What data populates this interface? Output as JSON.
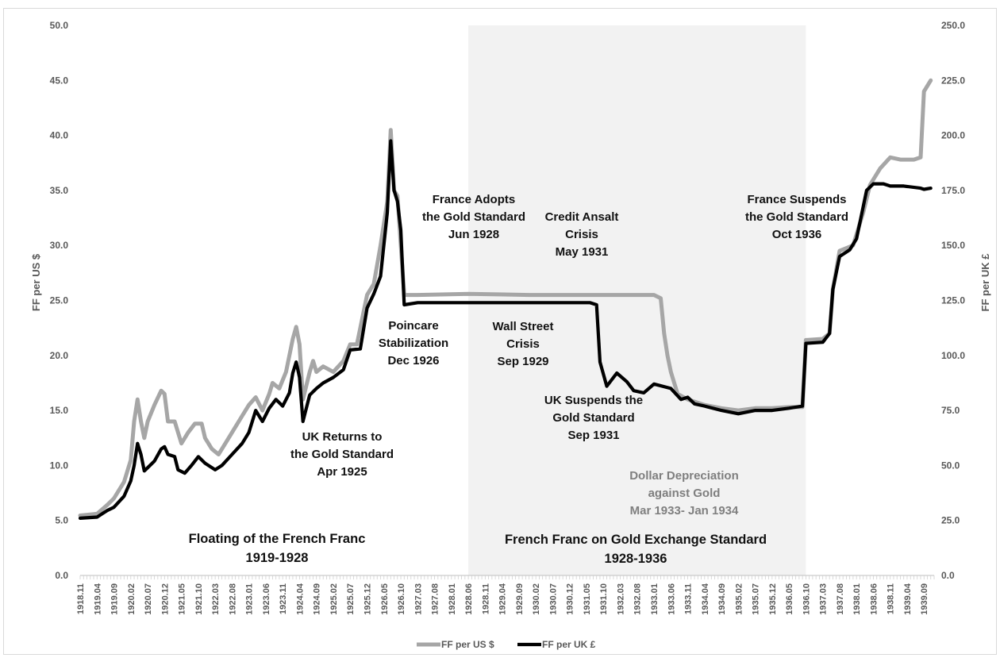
{
  "chart_data": {
    "type": "line",
    "title": "",
    "xlabel": "",
    "ylabel": "FF per US $",
    "y2label": "FF per UK £",
    "ylim": [
      0,
      50
    ],
    "y2lim": [
      0,
      250
    ],
    "yticks": [
      "0.0",
      "5.0",
      "10.0",
      "15.0",
      "20.0",
      "25.0",
      "30.0",
      "35.0",
      "40.0",
      "45.0",
      "50.0"
    ],
    "y2ticks": [
      "0.0",
      "25.0",
      "50.0",
      "75.0",
      "100.0",
      "125.0",
      "150.0",
      "175.0",
      "200.0",
      "225.0",
      "250.0"
    ],
    "x_start": "1918.11",
    "x_end": "1939.12",
    "x_ticks": [
      "1918.11",
      "1919.04",
      "1919.09",
      "1920.02",
      "1920.07",
      "1920.12",
      "1921.05",
      "1921.10",
      "1922.03",
      "1922.08",
      "1923.01",
      "1923.06",
      "1923.11",
      "1924.04",
      "1924.09",
      "1925.02",
      "1925.07",
      "1925.12",
      "1926.05",
      "1926.10",
      "1927.03",
      "1927.08",
      "1928.01",
      "1928.06",
      "1928.11",
      "1929.04",
      "1929.09",
      "1930.02",
      "1930.07",
      "1930.12",
      "1931.05",
      "1931.10",
      "1932.03",
      "1932.08",
      "1933.01",
      "1933.06",
      "1933.11",
      "1934.04",
      "1934.09",
      "1935.02",
      "1935.07",
      "1935.12",
      "1936.05",
      "1936.10",
      "1937.03",
      "1937.08",
      "1938.01",
      "1938.06",
      "1938.11",
      "1939.04",
      "1939.09"
    ],
    "grid": false,
    "legend_position": "bottom",
    "shaded_period": {
      "from": "1928.06",
      "to": "1936.10",
      "color": "#f2f2f2"
    },
    "series": [
      {
        "name": "FF per US $",
        "axis": "left",
        "color": "#a6a6a6",
        "points": [
          [
            "1918.11",
            5.45
          ],
          [
            "1919.04",
            5.6
          ],
          [
            "1919.07",
            6.4
          ],
          [
            "1919.09",
            7.0
          ],
          [
            "1919.12",
            8.5
          ],
          [
            "1920.02",
            10.5
          ],
          [
            "1920.03",
            14.0
          ],
          [
            "1920.04",
            16.0
          ],
          [
            "1920.05",
            14.0
          ],
          [
            "1920.06",
            12.5
          ],
          [
            "1920.07",
            14.0
          ],
          [
            "1920.09",
            15.5
          ],
          [
            "1920.11",
            16.8
          ],
          [
            "1920.12",
            16.5
          ],
          [
            "1921.01",
            14.0
          ],
          [
            "1921.03",
            14.0
          ],
          [
            "1921.05",
            12.0
          ],
          [
            "1921.07",
            13.0
          ],
          [
            "1921.09",
            13.8
          ],
          [
            "1921.11",
            13.8
          ],
          [
            "1921.12",
            12.5
          ],
          [
            "1922.02",
            11.5
          ],
          [
            "1922.04",
            11.0
          ],
          [
            "1922.06",
            12.0
          ],
          [
            "1922.08",
            13.0
          ],
          [
            "1922.11",
            14.5
          ],
          [
            "1923.01",
            15.5
          ],
          [
            "1923.03",
            16.2
          ],
          [
            "1923.05",
            15.0
          ],
          [
            "1923.07",
            16.5
          ],
          [
            "1923.08",
            17.5
          ],
          [
            "1923.10",
            17.0
          ],
          [
            "1923.12",
            18.5
          ],
          [
            "1924.02",
            21.5
          ],
          [
            "1924.03",
            22.6
          ],
          [
            "1924.04",
            21.0
          ],
          [
            "1924.05",
            16.0
          ],
          [
            "1924.07",
            18.5
          ],
          [
            "1924.08",
            19.5
          ],
          [
            "1924.09",
            18.5
          ],
          [
            "1924.11",
            19.0
          ],
          [
            "1925.02",
            18.5
          ],
          [
            "1925.05",
            19.5
          ],
          [
            "1925.07",
            21.0
          ],
          [
            "1925.09",
            21.0
          ],
          [
            "1925.12",
            25.5
          ],
          [
            "1926.02",
            26.5
          ],
          [
            "1926.04",
            30.0
          ],
          [
            "1926.06",
            34.0
          ],
          [
            "1926.07",
            40.5
          ],
          [
            "1926.08",
            35.0
          ],
          [
            "1926.09",
            34.5
          ],
          [
            "1926.11",
            25.5
          ],
          [
            "1927.03",
            25.5
          ],
          [
            "1928.06",
            25.6
          ],
          [
            "1929.12",
            25.5
          ],
          [
            "1931.05",
            25.5
          ],
          [
            "1933.01",
            25.5
          ],
          [
            "1933.03",
            25.2
          ],
          [
            "1933.04",
            22.0
          ],
          [
            "1933.05",
            20.0
          ],
          [
            "1933.06",
            18.5
          ],
          [
            "1933.08",
            16.5
          ],
          [
            "1933.11",
            16.0
          ],
          [
            "1934.01",
            15.8
          ],
          [
            "1934.04",
            15.5
          ],
          [
            "1934.09",
            15.2
          ],
          [
            "1935.02",
            15.0
          ],
          [
            "1935.07",
            15.2
          ],
          [
            "1935.12",
            15.2
          ],
          [
            "1936.05",
            15.3
          ],
          [
            "1936.09",
            15.3
          ],
          [
            "1936.10",
            21.4
          ],
          [
            "1937.03",
            21.5
          ],
          [
            "1937.05",
            22.0
          ],
          [
            "1937.06",
            26.0
          ],
          [
            "1937.08",
            29.5
          ],
          [
            "1937.12",
            30.0
          ],
          [
            "1938.03",
            33.0
          ],
          [
            "1938.05",
            35.5
          ],
          [
            "1938.08",
            37.0
          ],
          [
            "1938.11",
            38.0
          ],
          [
            "1939.02",
            37.8
          ],
          [
            "1939.06",
            37.8
          ],
          [
            "1939.08",
            38.0
          ],
          [
            "1939.09",
            44.0
          ],
          [
            "1939.11",
            45.0
          ]
        ]
      },
      {
        "name": "FF per UK £",
        "axis": "right",
        "color": "#000000",
        "points": [
          [
            "1918.11",
            26.0
          ],
          [
            "1919.04",
            26.5
          ],
          [
            "1919.07",
            29.5
          ],
          [
            "1919.09",
            31.0
          ],
          [
            "1919.12",
            36.0
          ],
          [
            "1920.02",
            43.0
          ],
          [
            "1920.03",
            50.0
          ],
          [
            "1920.04",
            60.0
          ],
          [
            "1920.05",
            55.0
          ],
          [
            "1920.06",
            47.5
          ],
          [
            "1920.07",
            49.0
          ],
          [
            "1920.09",
            52.0
          ],
          [
            "1920.11",
            57.5
          ],
          [
            "1920.12",
            58.5
          ],
          [
            "1921.01",
            55.0
          ],
          [
            "1921.03",
            54.0
          ],
          [
            "1921.04",
            48.0
          ],
          [
            "1921.06",
            46.5
          ],
          [
            "1921.08",
            50.0
          ],
          [
            "1921.10",
            54.0
          ],
          [
            "1921.12",
            51.0
          ],
          [
            "1922.03",
            48.0
          ],
          [
            "1922.05",
            50.0
          ],
          [
            "1922.08",
            55.0
          ],
          [
            "1922.11",
            60.0
          ],
          [
            "1923.01",
            65.0
          ],
          [
            "1923.03",
            75.0
          ],
          [
            "1923.05",
            70.0
          ],
          [
            "1923.07",
            76.0
          ],
          [
            "1923.09",
            80.0
          ],
          [
            "1923.11",
            77.0
          ],
          [
            "1924.01",
            83.0
          ],
          [
            "1924.02",
            92.0
          ],
          [
            "1924.03",
            97.0
          ],
          [
            "1924.04",
            90.0
          ],
          [
            "1924.05",
            70.0
          ],
          [
            "1924.07",
            82.0
          ],
          [
            "1924.09",
            85.0
          ],
          [
            "1924.11",
            87.5
          ],
          [
            "1925.02",
            90.0
          ],
          [
            "1925.05",
            93.5
          ],
          [
            "1925.07",
            102.5
          ],
          [
            "1925.10",
            103.0
          ],
          [
            "1925.12",
            121.5
          ],
          [
            "1926.02",
            128.0
          ],
          [
            "1926.04",
            136.0
          ],
          [
            "1926.06",
            165.0
          ],
          [
            "1926.07",
            197.5
          ],
          [
            "1926.08",
            175.0
          ],
          [
            "1926.09",
            170.0
          ],
          [
            "1926.10",
            157.0
          ],
          [
            "1926.11",
            123.0
          ],
          [
            "1927.03",
            124.0
          ],
          [
            "1928.06",
            124.0
          ],
          [
            "1929.12",
            124.0
          ],
          [
            "1931.04",
            124.0
          ],
          [
            "1931.06",
            124.0
          ],
          [
            "1931.08",
            123.0
          ],
          [
            "1931.09",
            97.0
          ],
          [
            "1931.11",
            86.0
          ],
          [
            "1932.02",
            92.0
          ],
          [
            "1932.05",
            88.0
          ],
          [
            "1932.07",
            84.0
          ],
          [
            "1932.10",
            83.0
          ],
          [
            "1933.01",
            87.0
          ],
          [
            "1933.06",
            85.0
          ],
          [
            "1933.09",
            80.0
          ],
          [
            "1933.11",
            81.0
          ],
          [
            "1934.01",
            78.0
          ],
          [
            "1934.04",
            77.0
          ],
          [
            "1934.09",
            75.0
          ],
          [
            "1935.02",
            73.5
          ],
          [
            "1935.07",
            75.0
          ],
          [
            "1935.12",
            75.0
          ],
          [
            "1936.05",
            76.0
          ],
          [
            "1936.09",
            77.0
          ],
          [
            "1936.10",
            105.5
          ],
          [
            "1937.03",
            106.0
          ],
          [
            "1937.05",
            110.0
          ],
          [
            "1937.06",
            130.0
          ],
          [
            "1937.08",
            145.0
          ],
          [
            "1937.11",
            148.0
          ],
          [
            "1938.01",
            153.0
          ],
          [
            "1938.04",
            175.0
          ],
          [
            "1938.06",
            178.0
          ],
          [
            "1938.09",
            178.0
          ],
          [
            "1938.11",
            177.0
          ],
          [
            "1939.03",
            177.0
          ],
          [
            "1939.08",
            176.0
          ],
          [
            "1939.09",
            175.5
          ],
          [
            "1939.11",
            176.0
          ]
        ]
      }
    ],
    "annotations": [
      {
        "id": "poincare",
        "lines": [
          "Poincare",
          "Stabilization",
          "Dec 1926"
        ]
      },
      {
        "id": "france-adopts",
        "lines": [
          "France Adopts",
          "the Gold Standard",
          "Jun 1928"
        ]
      },
      {
        "id": "credit-ansalt",
        "lines": [
          "Credit Ansalt",
          "Crisis",
          "May 1931"
        ]
      },
      {
        "id": "wall-street",
        "lines": [
          "Wall Street",
          "Crisis",
          "Sep 1929"
        ]
      },
      {
        "id": "uk-suspends",
        "lines": [
          "UK Suspends the",
          "Gold Standard",
          "Sep 1931"
        ]
      },
      {
        "id": "uk-returns",
        "lines": [
          "UK Returns to",
          "the Gold Standard",
          "Apr 1925"
        ]
      },
      {
        "id": "dollar-depreciation",
        "lines": [
          "Dollar Depreciation",
          "against Gold",
          "Mar 1933- Jan 1934"
        ]
      },
      {
        "id": "france-suspends",
        "lines": [
          "France Suspends",
          "the Gold Standard",
          "Oct 1936"
        ]
      },
      {
        "id": "floating",
        "lines": [
          "Floating of the French Franc",
          "1919-1928"
        ]
      },
      {
        "id": "gold-exchange",
        "lines": [
          "French Franc on Gold Exchange Standard",
          "1928-1936"
        ]
      }
    ]
  }
}
